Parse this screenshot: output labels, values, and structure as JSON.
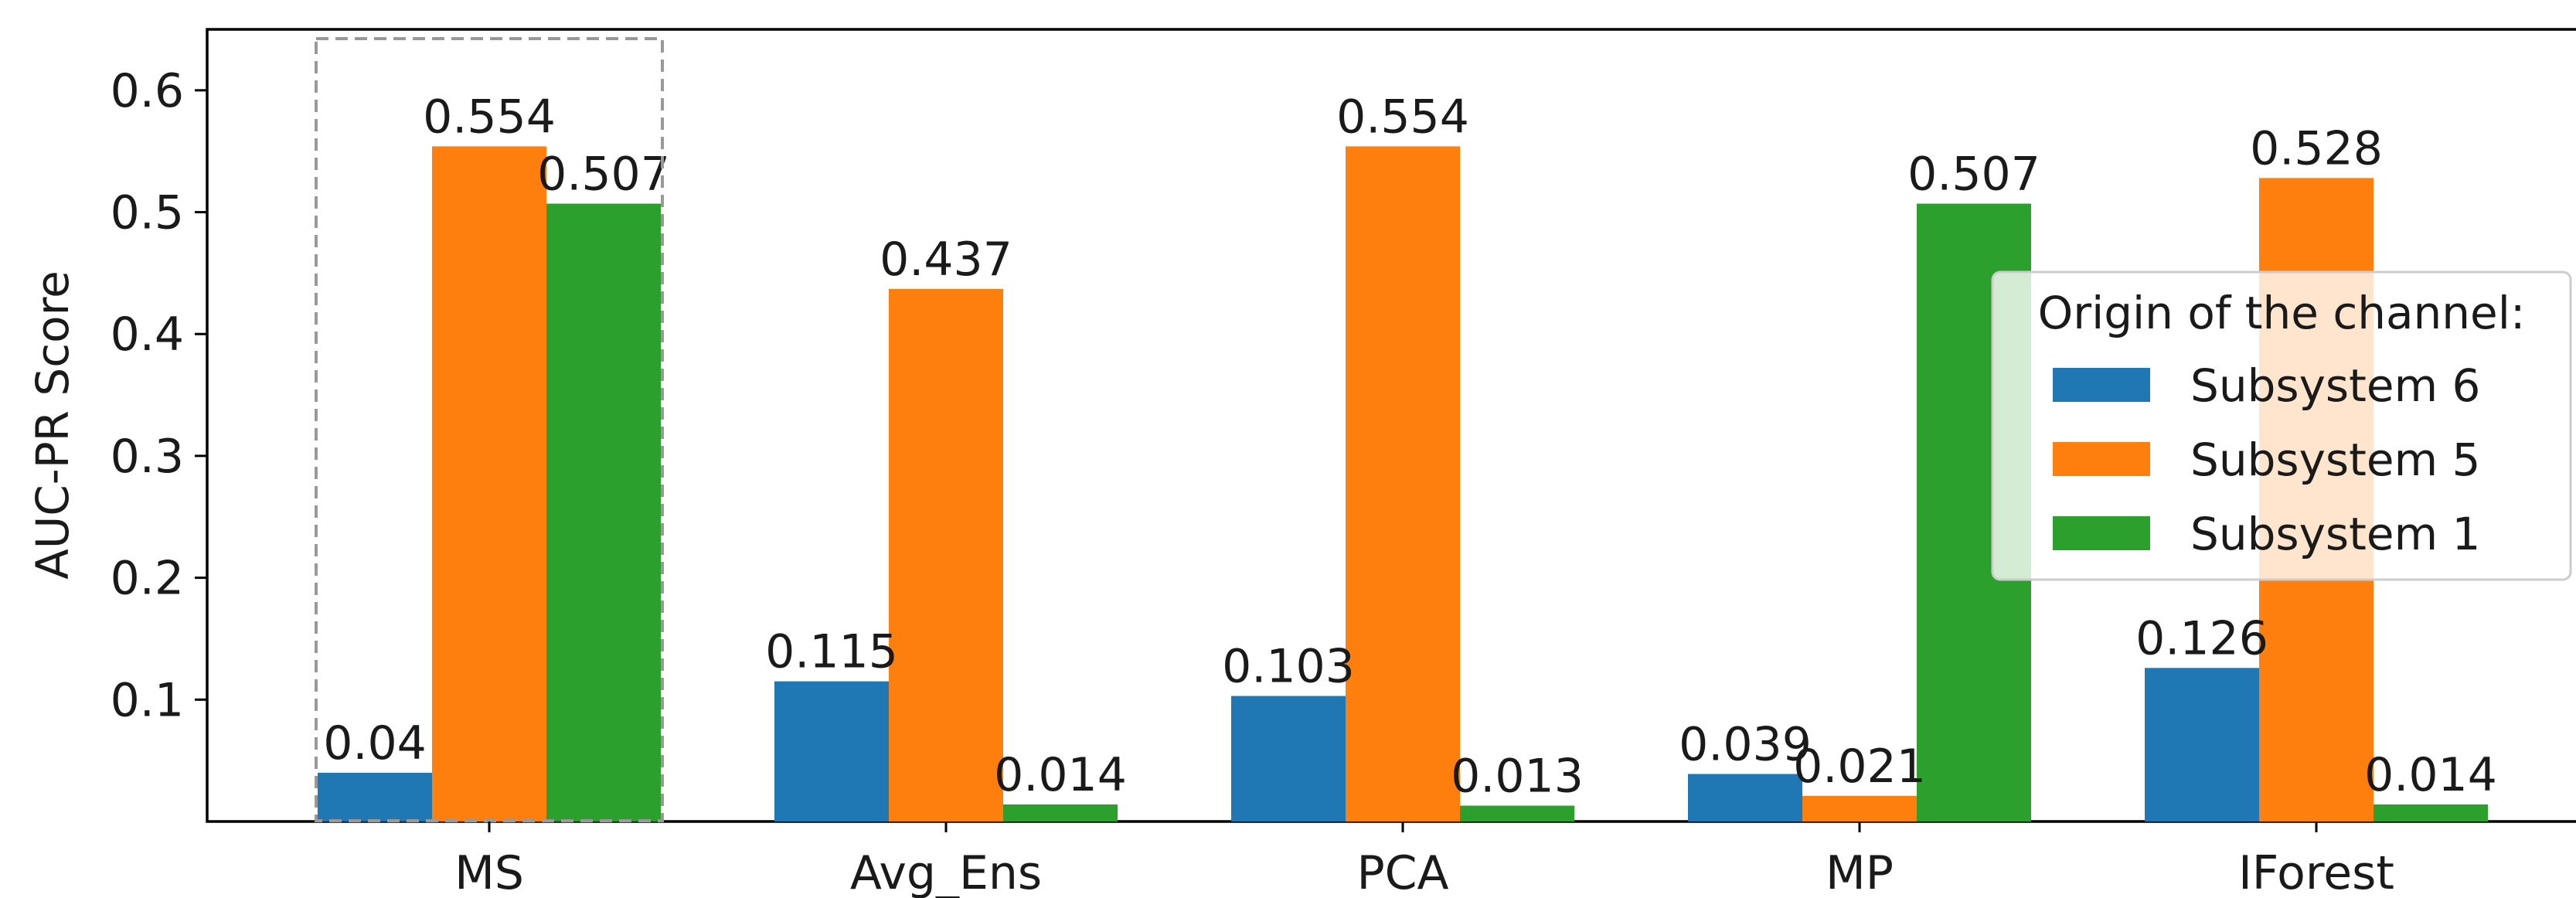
{
  "chart_data": {
    "type": "bar",
    "categories": [
      "MS",
      "Avg_Ens",
      "PCA",
      "MP",
      "IForest"
    ],
    "series": [
      {
        "name": "Subsystem 6",
        "color": "#1f77b4",
        "values": [
          0.04,
          0.115,
          0.103,
          0.039,
          0.126
        ],
        "labels": [
          "0.04",
          "0.115",
          "0.103",
          "0.039",
          "0.126"
        ]
      },
      {
        "name": "Subsystem 5",
        "color": "#ff7f0e",
        "values": [
          0.554,
          0.437,
          0.554,
          0.021,
          0.528
        ],
        "labels": [
          "0.554",
          "0.437",
          "0.554",
          "0.021",
          "0.528"
        ]
      },
      {
        "name": "Subsystem 1",
        "color": "#2ca02c",
        "values": [
          0.507,
          0.014,
          0.013,
          0.507,
          0.014
        ],
        "labels": [
          "0.507",
          "0.014",
          "0.013",
          "0.507",
          "0.014"
        ]
      }
    ],
    "title": "",
    "xlabel": "",
    "ylabel": "AUC-PR Score",
    "ylim": [
      0,
      0.65
    ],
    "yticks": [
      "0.1",
      "0.2",
      "0.3",
      "0.4",
      "0.5",
      "0.6"
    ],
    "legend": {
      "title": "Origin of the channel:",
      "placement": "right"
    },
    "highlight": {
      "category": "MS",
      "style": "dashed box"
    },
    "grid": false
  }
}
